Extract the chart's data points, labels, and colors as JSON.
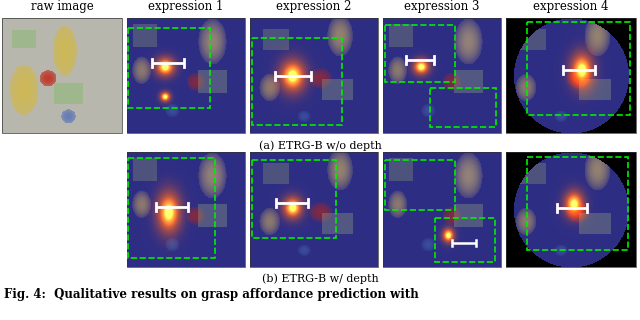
{
  "title_row": [
    "raw image",
    "expression 1",
    "expression 2",
    "expression 3",
    "expression 4"
  ],
  "caption_a": "(a) ETRG-B w/o depth",
  "caption_b": "(b) ETRG-B w/ depth",
  "fig_caption": "Fig. 4:  Qualitative results on grasp affordance prediction with",
  "bg_color": "#ffffff",
  "header_fontsize": 8.5,
  "caption_fontsize": 8.0,
  "fig_caption_fontsize": 8.5
}
